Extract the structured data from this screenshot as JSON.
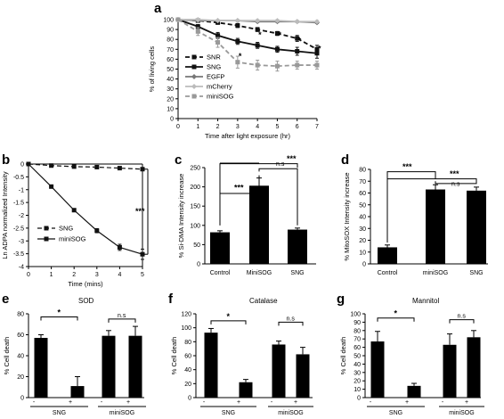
{
  "chart_data": [
    {
      "panel": "a",
      "type": "line",
      "xlabel": "Time after light exposure (hr)",
      "ylabel": "% of living cells",
      "xlim": [
        0,
        7
      ],
      "ylim": [
        0,
        100
      ],
      "x_ticks": [
        0,
        1,
        2,
        3,
        4,
        5,
        6,
        7
      ],
      "y_ticks": [
        0,
        10,
        20,
        30,
        40,
        50,
        60,
        70,
        80,
        90,
        100
      ],
      "x": [
        0,
        1,
        2,
        3,
        4,
        5,
        6,
        7
      ],
      "legend_position": "bottom-left",
      "series": [
        {
          "name": "SNR",
          "values": [
            100,
            99,
            97,
            94,
            90,
            86,
            81,
            70
          ],
          "errors": [
            0,
            1,
            1,
            2,
            2,
            2,
            3,
            4
          ],
          "color": "#111111",
          "dash": true,
          "marker": "square"
        },
        {
          "name": "SNG",
          "values": [
            100,
            93,
            84,
            78,
            74,
            70,
            68,
            66
          ],
          "errors": [
            0,
            2,
            3,
            3,
            3,
            3,
            4,
            5
          ],
          "color": "#111111",
          "dash": false,
          "marker": "square"
        },
        {
          "name": "EGFP",
          "values": [
            100,
            99,
            99,
            99,
            98,
            98,
            98,
            97
          ],
          "errors": [
            0,
            1,
            1,
            1,
            1,
            1,
            1,
            1
          ],
          "color": "#777777",
          "dash": false,
          "marker": "diamond"
        },
        {
          "name": "mCherry",
          "values": [
            100,
            100,
            99,
            99,
            99,
            99,
            98,
            98
          ],
          "errors": [
            0,
            1,
            1,
            1,
            1,
            1,
            1,
            1
          ],
          "color": "#bbbbbb",
          "dash": false,
          "marker": "diamond"
        },
        {
          "name": "miniSOG",
          "values": [
            100,
            88,
            77,
            57,
            54,
            53,
            54,
            54
          ],
          "errors": [
            0,
            4,
            5,
            6,
            5,
            5,
            4,
            4
          ],
          "color": "#999999",
          "dash": true,
          "marker": "square"
        }
      ],
      "annotations": [
        "*",
        "*",
        "*",
        "*",
        "*"
      ]
    },
    {
      "panel": "b",
      "type": "line",
      "xlabel": "Time (mins)",
      "ylabel": "Ln ADPA normalized Intensity",
      "xlim": [
        0,
        5
      ],
      "ylim": [
        -4,
        0
      ],
      "x_ticks": [
        0,
        1,
        2,
        3,
        4,
        5
      ],
      "y_ticks": [
        0,
        -0.5,
        -1,
        -1.5,
        -2,
        -2.5,
        -3,
        -3.5,
        -4
      ],
      "x": [
        0,
        1,
        2,
        3,
        4,
        5
      ],
      "legend_position": "bottom-left",
      "series": [
        {
          "name": "SNG",
          "values": [
            0,
            -0.06,
            -0.1,
            -0.12,
            -0.16,
            -0.2
          ],
          "errors": [
            0.02,
            0.03,
            0.03,
            0.04,
            0.05,
            0.06
          ],
          "color": "#111111",
          "dash": true,
          "marker": "square"
        },
        {
          "name": "miniSOG",
          "values": [
            0,
            -0.88,
            -1.8,
            -2.6,
            -3.25,
            -3.52
          ],
          "errors": [
            0.02,
            0.04,
            0.06,
            0.08,
            0.12,
            0.2
          ],
          "color": "#111111",
          "dash": false,
          "marker": "square"
        }
      ],
      "annotations": [
        "***"
      ]
    },
    {
      "panel": "c",
      "type": "bar",
      "ylabel": "% Si-DMA Intensity increase",
      "ylim": [
        0,
        250
      ],
      "y_ticks": [
        0,
        50,
        100,
        150,
        200,
        250
      ],
      "categories": [
        "Control",
        "MiniSOG",
        "SNG"
      ],
      "values": [
        82,
        203,
        89
      ],
      "errors": [
        4,
        20,
        4
      ],
      "annotations": [
        "***",
        "n.s",
        "***"
      ]
    },
    {
      "panel": "d",
      "type": "bar",
      "ylabel": "% MitoSOX Intensity increase",
      "ylim": [
        0,
        80
      ],
      "y_ticks": [
        0,
        10,
        20,
        30,
        40,
        50,
        60,
        70,
        80
      ],
      "categories": [
        "Control",
        "miniSOG",
        "SNG"
      ],
      "values": [
        14,
        63,
        62
      ],
      "errors": [
        2,
        4,
        3
      ],
      "annotations": [
        "***",
        "***",
        "n.s"
      ]
    },
    {
      "panel": "e",
      "type": "bar",
      "title": "SOD",
      "ylabel": "% Cell death",
      "ylim": [
        0,
        80
      ],
      "y_ticks": [
        0,
        20,
        40,
        60,
        80
      ],
      "categories": [
        "-",
        "+",
        "-",
        "+"
      ],
      "groups": [
        "SNG",
        "miniSOG"
      ],
      "values": [
        57,
        11,
        59,
        59
      ],
      "errors": [
        3,
        9,
        5,
        9
      ],
      "annotations": [
        "*",
        "n.s"
      ]
    },
    {
      "panel": "f",
      "type": "bar",
      "title": "Catalase",
      "ylabel": "% Cell death",
      "ylim": [
        0,
        120
      ],
      "y_ticks": [
        0,
        20,
        40,
        60,
        80,
        100,
        120
      ],
      "categories": [
        "-",
        "+",
        "-",
        "+"
      ],
      "groups": [
        "SNG",
        "miniSOG"
      ],
      "values": [
        93,
        22,
        76,
        62
      ],
      "errors": [
        6,
        4,
        5,
        10
      ],
      "annotations": [
        "*",
        "n.s"
      ]
    },
    {
      "panel": "g",
      "type": "bar",
      "title": "Mannitol",
      "ylabel": "% Cell death",
      "ylim": [
        0,
        100
      ],
      "y_ticks": [
        0,
        10,
        20,
        30,
        40,
        50,
        60,
        70,
        80,
        90,
        100
      ],
      "categories": [
        "-",
        "+",
        "-",
        "+"
      ],
      "groups": [
        "SNG",
        "miniSOG"
      ],
      "values": [
        67,
        14,
        63,
        72
      ],
      "errors": [
        12,
        3,
        13,
        8
      ],
      "annotations": [
        "*",
        "n.s"
      ]
    }
  ]
}
